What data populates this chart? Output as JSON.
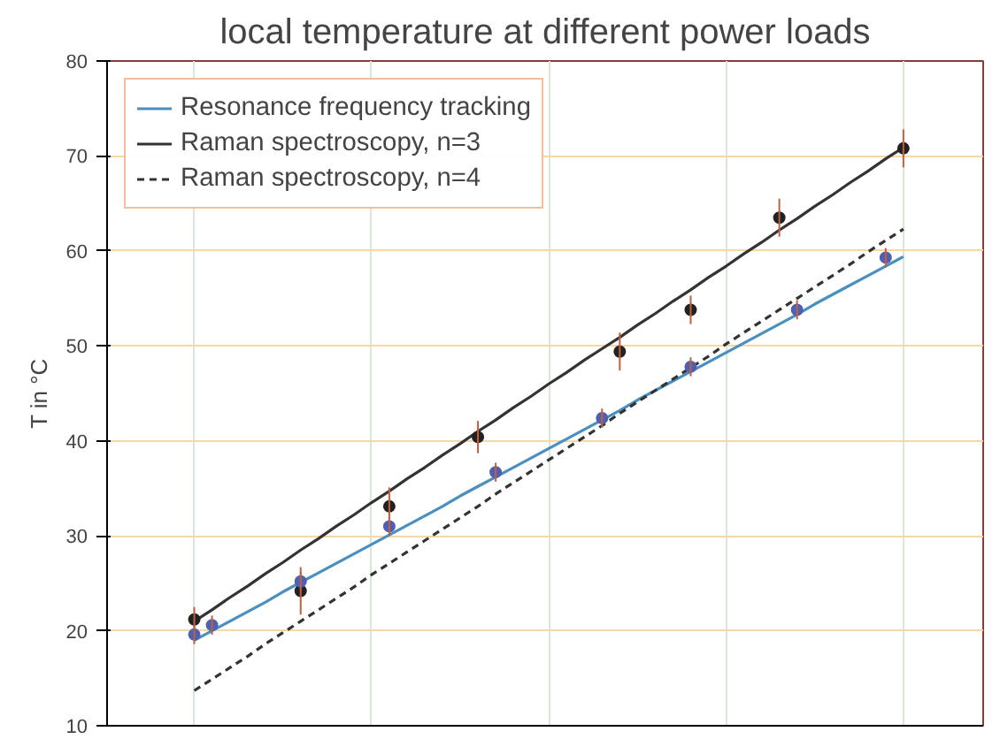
{
  "chart_data": {
    "type": "scatter",
    "title": "local temperature at different power loads",
    "ylabel": "T in °C",
    "categories": [
      null,
      null,
      null,
      null,
      null,
      null,
      null,
      null,
      null,
      null,
      null,
      null,
      null,
      null,
      null,
      null,
      null,
      null,
      null,
      null,
      null,
      null,
      null,
      null,
      null,
      null,
      null,
      null,
      null,
      null,
      null,
      null,
      null,
      null,
      null,
      null,
      null,
      null,
      null,
      null,
      null
    ],
    "ylim": [
      10,
      80
    ],
    "yticks": [
      10,
      20,
      30,
      40,
      50,
      60,
      70,
      80
    ],
    "grid": true,
    "legend": "top left",
    "marker": "circle",
    "series": [
      {
        "type": "scatter",
        "color": "#222222",
        "values": [
          21.2,
          null,
          null,
          null,
          null,
          null,
          24.2,
          null,
          null,
          null,
          null,
          33.1,
          null,
          null,
          null,
          null,
          40.4,
          null,
          null,
          null,
          null,
          null,
          null,
          null,
          49.4,
          null,
          null,
          null,
          53.8,
          null,
          null,
          null,
          null,
          63.5,
          null,
          null,
          null,
          null,
          null,
          null,
          70.8
        ],
        "errors": [
          1.3,
          null,
          null,
          null,
          null,
          null,
          2.5,
          null,
          null,
          null,
          null,
          2,
          null,
          null,
          null,
          null,
          1.7,
          null,
          null,
          null,
          null,
          null,
          null,
          null,
          2,
          null,
          null,
          null,
          1.5,
          null,
          null,
          null,
          null,
          2,
          null,
          null,
          null,
          null,
          null,
          null,
          2
        ]
      },
      {
        "type": "scatter",
        "color": "#5060b0",
        "values": [
          19.6,
          20.6,
          null,
          null,
          null,
          null,
          25.2,
          null,
          null,
          null,
          null,
          31.0,
          null,
          null,
          null,
          null,
          null,
          36.7,
          null,
          null,
          null,
          null,
          null,
          42.4,
          null,
          null,
          null,
          null,
          47.8,
          null,
          null,
          null,
          null,
          null,
          53.8,
          null,
          null,
          null,
          null,
          59.3,
          null
        ],
        "errors": [
          1,
          1,
          null,
          null,
          null,
          null,
          1,
          null,
          null,
          null,
          null,
          1,
          null,
          null,
          null,
          null,
          null,
          1,
          null,
          null,
          null,
          null,
          null,
          1,
          null,
          null,
          null,
          null,
          1,
          null,
          null,
          null,
          null,
          null,
          1,
          null,
          null,
          null,
          null,
          1,
          null
        ]
      },
      {
        "type": "line",
        "name": "Resonance frequency tracking",
        "color": "#4a8fc0",
        "line_style": "solid",
        "marker": "none",
        "values": [
          19.0,
          20.0,
          21.0,
          22.0,
          23.0,
          24.1,
          25.1,
          26.1,
          27.1,
          28.1,
          29.1,
          30.1,
          31.1,
          32.1,
          33.1,
          34.2,
          35.2,
          36.2,
          37.2,
          38.2,
          39.2,
          40.2,
          41.2,
          42.2,
          43.2,
          44.3,
          45.3,
          46.3,
          47.3,
          48.3,
          49.3,
          50.3,
          51.3,
          52.3,
          53.3,
          54.4,
          55.4,
          56.4,
          57.4,
          58.4,
          59.4
        ]
      },
      {
        "type": "line",
        "name": "Raman spectroscopy, n=3",
        "color": "#333333",
        "line_style": "solid",
        "marker": "none",
        "values": [
          21.0,
          22.2,
          23.5,
          24.7,
          26.0,
          27.2,
          28.5,
          29.7,
          31.0,
          32.2,
          33.5,
          34.7,
          36.0,
          37.2,
          38.5,
          39.7,
          41.0,
          42.2,
          43.5,
          44.7,
          46.0,
          47.2,
          48.5,
          49.7,
          50.9,
          52.2,
          53.4,
          54.7,
          55.9,
          57.2,
          58.4,
          59.7,
          60.9,
          62.2,
          63.4,
          64.7,
          65.9,
          67.2,
          68.4,
          69.7,
          70.9
        ]
      },
      {
        "type": "line",
        "name": "Raman spectroscopy, n=4",
        "color": "#333333",
        "line_style": "dashed",
        "marker": "none",
        "values": [
          13.7,
          14.9,
          16.1,
          17.3,
          18.6,
          19.8,
          21.0,
          22.2,
          23.4,
          24.6,
          25.9,
          27.1,
          28.3,
          29.5,
          30.7,
          31.9,
          33.1,
          34.4,
          35.6,
          36.8,
          38.0,
          39.2,
          40.4,
          41.6,
          42.9,
          44.1,
          45.3,
          46.5,
          47.7,
          48.9,
          50.2,
          51.4,
          52.6,
          53.8,
          55.0,
          56.2,
          57.4,
          58.6,
          59.9,
          61.1,
          62.3
        ]
      }
    ]
  }
}
